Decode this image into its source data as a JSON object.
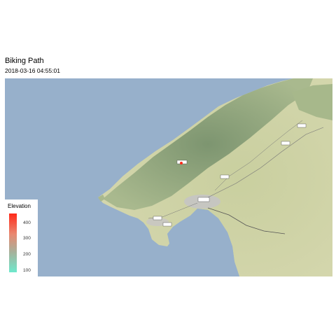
{
  "title": "Biking Path",
  "subtitle": "2018-03-16 04:55:01",
  "colors": {
    "water": "#97b0cb",
    "land_low": "#cfd3a8",
    "land_mid": "#b9c59a",
    "mountain": "#8fa57e",
    "urban": "#c8c8c8",
    "path_point": "#ff2a1a",
    "legend_high": "#ff2a1a",
    "legend_low": "#6ee8cc"
  },
  "legend": {
    "title": "Elevation",
    "ticks": [
      "400",
      "300",
      "200",
      "100"
    ]
  }
}
